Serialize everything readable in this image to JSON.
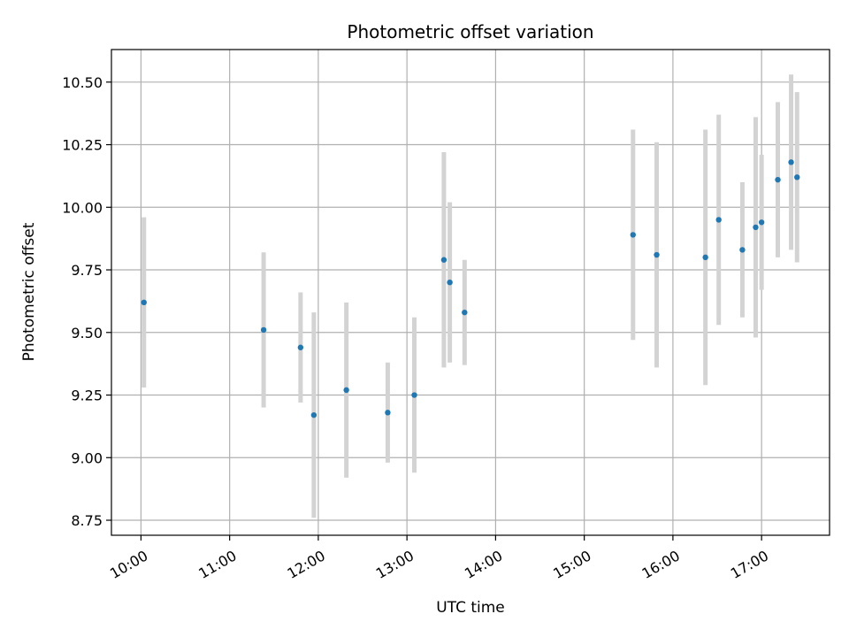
{
  "chart_data": {
    "type": "scatter",
    "title": "Photometric offset variation",
    "xlabel": "UTC time",
    "ylabel": "Photometric offset",
    "xlim": [
      "09:40",
      "17:46"
    ],
    "ylim": [
      8.69,
      10.63
    ],
    "x_ticks": [
      "10:00",
      "11:00",
      "12:00",
      "13:00",
      "14:00",
      "15:00",
      "16:00",
      "17:00"
    ],
    "y_ticks": [
      "8.75",
      "9.00",
      "9.25",
      "9.50",
      "9.75",
      "10.00",
      "10.25",
      "10.50"
    ],
    "grid": true,
    "legend": "none",
    "colors": {
      "points": "#1f77b4",
      "errorbars": "#d3d3d3",
      "grid": "#b0b0b0"
    },
    "points": [
      {
        "x": "10:02",
        "y": 9.62,
        "err": 0.34
      },
      {
        "x": "11:23",
        "y": 9.51,
        "err": 0.31
      },
      {
        "x": "11:48",
        "y": 9.44,
        "err": 0.22
      },
      {
        "x": "11:57",
        "y": 9.17,
        "err": 0.41
      },
      {
        "x": "12:19",
        "y": 9.27,
        "err": 0.35
      },
      {
        "x": "12:47",
        "y": 9.18,
        "err": 0.2
      },
      {
        "x": "13:05",
        "y": 9.25,
        "err": 0.31
      },
      {
        "x": "13:25",
        "y": 9.79,
        "err": 0.43
      },
      {
        "x": "13:29",
        "y": 9.7,
        "err": 0.32
      },
      {
        "x": "13:39",
        "y": 9.58,
        "err": 0.21
      },
      {
        "x": "15:33",
        "y": 9.89,
        "err": 0.42
      },
      {
        "x": "15:49",
        "y": 9.81,
        "err": 0.45
      },
      {
        "x": "16:22",
        "y": 9.8,
        "err": 0.51
      },
      {
        "x": "16:31",
        "y": 9.95,
        "err": 0.42
      },
      {
        "x": "16:47",
        "y": 9.83,
        "err": 0.27
      },
      {
        "x": "16:56",
        "y": 9.92,
        "err": 0.44
      },
      {
        "x": "17:00",
        "y": 9.94,
        "err": 0.27
      },
      {
        "x": "17:11",
        "y": 10.11,
        "err": 0.31
      },
      {
        "x": "17:20",
        "y": 10.18,
        "err": 0.35
      },
      {
        "x": "17:24",
        "y": 10.12,
        "err": 0.34
      }
    ]
  }
}
